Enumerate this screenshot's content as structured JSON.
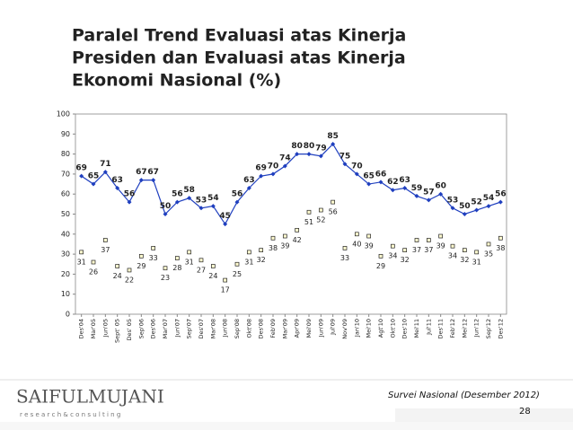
{
  "chart_data": {
    "type": "line",
    "title_lines": [
      "Paralel Trend Evaluasi atas Kinerja",
      "Presiden dan Evaluasi atas Kinerja",
      "Ekonomi Nasional (%)"
    ],
    "categories": [
      "Des'04",
      "Mar'05",
      "Jun'05",
      "Sept' 05",
      "Des' 05",
      "Sep'06",
      "Des'06",
      "Mar'07",
      "Jun'07",
      "Sep'07",
      "Des'07",
      "Mar'08",
      "Jun'08",
      "Sep'08",
      "Okt'08",
      "Des'08",
      "Feb'09",
      "Mar'09",
      "Apr'09",
      "Mei'09",
      "Jun'09",
      "Jul'09",
      "Nov'09",
      "Jan'10",
      "Mei'10",
      "Agt'10",
      "Okt'10",
      "Des'10",
      "Mei'11",
      "Jul'11",
      "Des'11",
      "Feb'12",
      "Mei'12",
      "Jun'12",
      "Sep'12",
      "Des'12"
    ],
    "series": [
      {
        "color": "#1f3fbf",
        "values": [
          69,
          65,
          71,
          63,
          56,
          67,
          67,
          50,
          56,
          58,
          53,
          54,
          45,
          56,
          63,
          69,
          70,
          74,
          80,
          80,
          79,
          85,
          75,
          70,
          65,
          66,
          62,
          63,
          59,
          57,
          60,
          53,
          50,
          52,
          54,
          56
        ]
      },
      {
        "color": "#fffbd0",
        "values": [
          31,
          26,
          37,
          24,
          22,
          29,
          33,
          23,
          28,
          31,
          27,
          24,
          17,
          25,
          31,
          32,
          38,
          39,
          42,
          51,
          52,
          56,
          33,
          40,
          39,
          29,
          34,
          32,
          37,
          37,
          39,
          34,
          32,
          31,
          35,
          38
        ]
      }
    ],
    "ylim": [
      0,
      100
    ],
    "yticks": [
      0,
      10,
      20,
      30,
      40,
      50,
      60,
      70,
      80,
      90,
      100
    ],
    "grid": false
  },
  "footer": {
    "logo": "SAIFULMUJANI",
    "logo_sub": "r e s e a r c h   &   c o n s u l t i n g",
    "source": "Survei Nasional (Desember 2012)",
    "page": "28"
  }
}
